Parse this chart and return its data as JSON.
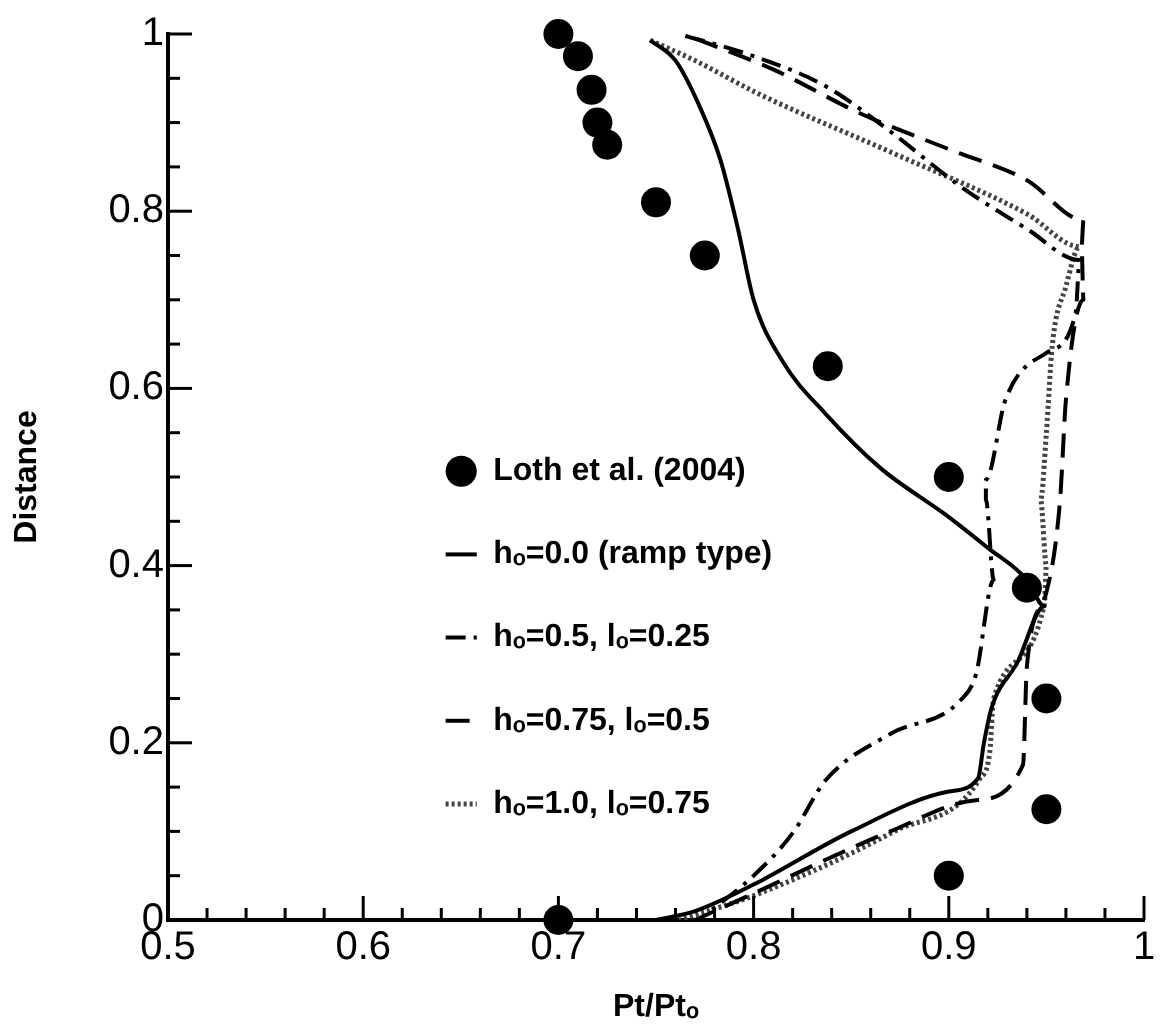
{
  "chart_data": {
    "type": "line",
    "xlabel": "Pt/Ptₒ",
    "ylabel": "Distance",
    "xlim": [
      0.5,
      1
    ],
    "ylim": [
      0,
      1
    ],
    "xticks": [
      0.5,
      {
        "value": 0.52,
        "label": null
      },
      {
        "value": 0.54,
        "label": null
      },
      {
        "value": 0.56,
        "label": null
      },
      {
        "value": 0.58,
        "label": null
      },
      0.6,
      {
        "value": 0.62,
        "label": null
      },
      {
        "value": 0.64,
        "label": null
      },
      {
        "value": 0.66,
        "label": null
      },
      {
        "value": 0.68,
        "label": null
      },
      0.7,
      {
        "value": 0.72,
        "label": null
      },
      {
        "value": 0.74,
        "label": null
      },
      {
        "value": 0.76,
        "label": null
      },
      {
        "value": 0.78,
        "label": null
      },
      0.8,
      {
        "value": 0.82,
        "label": null
      },
      {
        "value": 0.84,
        "label": null
      },
      {
        "value": 0.86,
        "label": null
      },
      {
        "value": 0.88,
        "label": null
      },
      0.9,
      {
        "value": 0.92,
        "label": null
      },
      {
        "value": 0.94,
        "label": null
      },
      {
        "value": 0.96,
        "label": null
      },
      {
        "value": 0.98,
        "label": null
      },
      1
    ],
    "yticks": [
      0,
      {
        "value": 0.05,
        "label": null
      },
      {
        "value": 0.1,
        "label": null
      },
      {
        "value": 0.15,
        "label": null
      },
      0.2,
      {
        "value": 0.25,
        "label": null
      },
      {
        "value": 0.3,
        "label": null
      },
      {
        "value": 0.35,
        "label": null
      },
      0.4,
      {
        "value": 0.45,
        "label": null
      },
      {
        "value": 0.5,
        "label": null
      },
      {
        "value": 0.55,
        "label": null
      },
      0.6,
      {
        "value": 0.65,
        "label": null
      },
      {
        "value": 0.7,
        "label": null
      },
      {
        "value": 0.75,
        "label": null
      },
      0.8,
      {
        "value": 0.85,
        "label": null
      },
      {
        "value": 0.9,
        "label": null
      },
      {
        "value": 0.95,
        "label": null
      },
      1
    ],
    "grid": false,
    "legend": "left",
    "series": [
      {
        "name": "Loth et al. (2004)",
        "type": "scatter",
        "marker": "circle",
        "color": "#000000",
        "x": [
          0.7,
          0.71,
          0.717,
          0.72,
          0.725,
          0.75,
          0.775,
          0.838,
          0.9,
          0.94,
          0.95,
          0.95,
          0.9,
          0.7
        ],
        "values": [
          1.0,
          0.975,
          0.937,
          0.9,
          0.875,
          0.81,
          0.75,
          0.625,
          0.5,
          0.375,
          0.25,
          0.125,
          0.05,
          0.0
        ]
      },
      {
        "name": "hₒ=0.0 (ramp type)",
        "type": "line",
        "line_style": "solid",
        "color": "#000000",
        "x": [
          0.747,
          0.76,
          0.772,
          0.783,
          0.792,
          0.8,
          0.815,
          0.837,
          0.865,
          0.898,
          0.92,
          0.94,
          0.949,
          0.935,
          0.922,
          0.918,
          0.915,
          0.9,
          0.85,
          0.8,
          0.77,
          0.75
        ],
        "values": [
          0.993,
          0.97,
          0.92,
          0.858,
          0.78,
          0.7,
          0.63,
          0.571,
          0.51,
          0.458,
          0.42,
          0.384,
          0.354,
          0.29,
          0.24,
          0.2,
          0.16,
          0.145,
          0.1,
          0.04,
          0.01,
          0.0
        ]
      },
      {
        "name": "hₒ=0.5, lₒ=0.25",
        "type": "line",
        "line_style": "dashdot",
        "color": "#000000",
        "x": [
          0.765,
          0.8,
          0.837,
          0.87,
          0.906,
          0.94,
          0.967,
          0.965,
          0.95,
          0.929,
          0.919,
          0.919,
          0.923,
          0.914,
          0.906,
          0.87,
          0.837,
          0.82,
          0.8,
          0.776
        ],
        "values": [
          0.998,
          0.975,
          0.941,
          0.89,
          0.828,
          0.78,
          0.745,
          0.685,
          0.64,
          0.587,
          0.497,
          0.474,
          0.384,
          0.278,
          0.248,
          0.21,
          0.158,
          0.098,
          0.05,
          0.007
        ]
      },
      {
        "name": "hₒ=0.75, lₒ=0.5",
        "type": "line",
        "line_style": "dashed",
        "color": "#000000",
        "x": [
          0.77,
          0.81,
          0.855,
          0.9,
          0.94,
          0.969,
          0.968,
          0.969,
          0.96,
          0.957,
          0.95,
          0.94,
          0.938,
          0.913,
          0.87,
          0.837,
          0.8,
          0.77
        ],
        "values": [
          0.995,
          0.96,
          0.91,
          0.87,
          0.835,
          0.79,
          0.76,
          0.7,
          0.587,
          0.474,
          0.37,
          0.286,
          0.175,
          0.135,
          0.1,
          0.068,
          0.03,
          0.0
        ]
      },
      {
        "name": "hₒ=1.0, lₒ=0.75",
        "type": "line",
        "line_style": "dotted",
        "color": "#444444",
        "x": [
          0.747,
          0.77,
          0.803,
          0.872,
          0.94,
          0.967,
          0.96,
          0.953,
          0.95,
          0.947,
          0.95,
          0.949,
          0.923,
          0.921,
          0.916,
          0.872,
          0.803,
          0.762
        ],
        "values": [
          0.993,
          0.97,
          0.932,
          0.865,
          0.797,
          0.76,
          0.715,
          0.648,
          0.55,
          0.474,
          0.4,
          0.357,
          0.25,
          0.19,
          0.16,
          0.1,
          0.03,
          0.0
        ]
      }
    ]
  }
}
